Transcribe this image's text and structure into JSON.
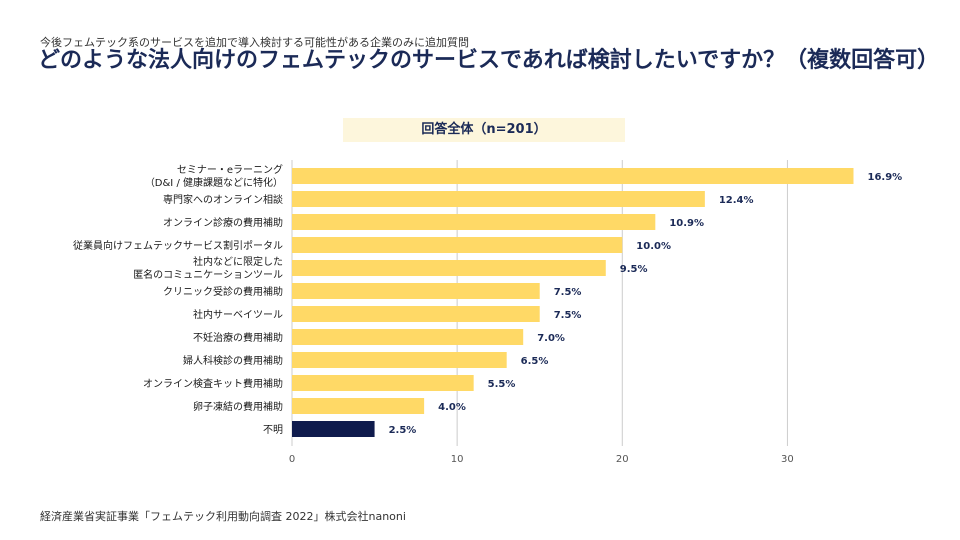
{
  "header": {
    "subtitle": "今後フェムテック系のサービスを追加で導入検討する可能性がある企業のみに追加質問",
    "title": "どのような法人向けのフェムテックのサービスであれば検討したいですか？（複数回答可）"
  },
  "group_label": "回答全体（n=201）",
  "source": "経済産業省実証事業「フェムテック利用動向調査 2022」株式会社nanoni",
  "colors": {
    "bar": "#ffd966",
    "bar_highlight": "#0f1b4d",
    "grid": "#cccccc",
    "label": "#1b2a57"
  },
  "chart_data": {
    "type": "bar",
    "orientation": "horizontal",
    "categories": [
      [
        "セミナー・eラーニング",
        "（D&I / 健康課題などに特化）"
      ],
      [
        "専門家へのオンライン相談"
      ],
      [
        "オンライン診療の費用補助"
      ],
      [
        "従業員向けフェムテックサービス割引ポータル"
      ],
      [
        "社内などに限定した",
        "匿名のコミュニケーションツール"
      ],
      [
        "クリニック受診の費用補助"
      ],
      [
        "社内サーベイツール"
      ],
      [
        "不妊治療の費用補助"
      ],
      [
        "婦人科検診の費用補助"
      ],
      [
        "オンライン検査キット費用補助"
      ],
      [
        "卵子凍結の費用補助"
      ],
      [
        "不明"
      ]
    ],
    "values": [
      34,
      25,
      22,
      20,
      19,
      15,
      15,
      14,
      13,
      11,
      8,
      5
    ],
    "data_labels": [
      "16.9%",
      "12.4%",
      "10.9%",
      "10.0%",
      "9.5%",
      "7.5%",
      "7.5%",
      "7.0%",
      "6.5%",
      "5.5%",
      "4.0%",
      "2.5%"
    ],
    "highlight": [
      false,
      false,
      false,
      false,
      false,
      false,
      false,
      false,
      false,
      false,
      false,
      true
    ],
    "xlim": [
      0,
      35
    ],
    "xticks": [
      0,
      10,
      20,
      30
    ],
    "grid": true
  }
}
